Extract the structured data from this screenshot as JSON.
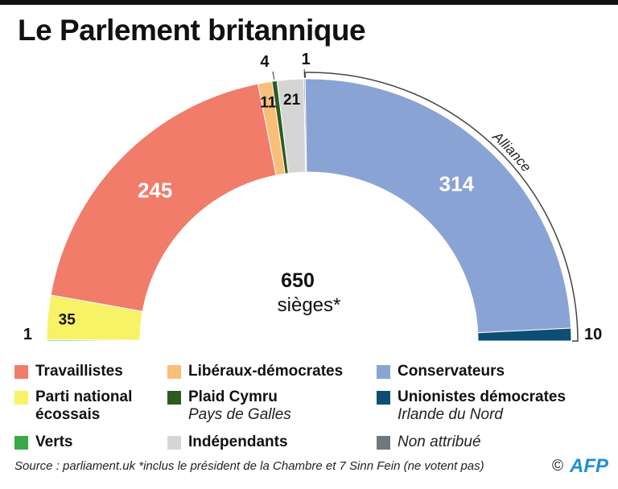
{
  "title": "Le Parlement britannique",
  "chart_data": {
    "type": "pie",
    "subtype": "half-donut",
    "title": "Le Parlement britannique",
    "total": 650,
    "total_label": "650",
    "total_sublabel": "sièges*",
    "series": [
      {
        "name": "Verts",
        "value": 1,
        "color": "#3aaa48",
        "label": "1"
      },
      {
        "name": "Parti national écossais",
        "value": 35,
        "color": "#f8f266",
        "label": "35"
      },
      {
        "name": "Travaillistes",
        "value": 245,
        "color": "#f07c69",
        "label": "245"
      },
      {
        "name": "Libéraux-démocrates",
        "value": 11,
        "color": "#f9be78",
        "label": "11"
      },
      {
        "name": "Plaid Cymru",
        "value": 4,
        "color": "#2e5b1f",
        "label": "4"
      },
      {
        "name": "Indépendants",
        "value": 21,
        "color": "#d5d5d5",
        "label": "21"
      },
      {
        "name": "Non attribué",
        "value": 1,
        "color": "#6f787d",
        "label": "1"
      },
      {
        "name": "Conservateurs",
        "value": 314,
        "color": "#8aa3d5",
        "label": "314"
      },
      {
        "name": "Unionistes démocrates",
        "value": 10,
        "color": "#0d4f74",
        "label": "10"
      }
    ],
    "annotations": [
      {
        "text": "Alliance",
        "spans": [
          "Conservateurs",
          "Unionistes démocrates"
        ]
      }
    ]
  },
  "legend": [
    {
      "label": "Travaillistes",
      "sub": "",
      "color": "#f07c69"
    },
    {
      "label": "Libéraux-démocrates",
      "sub": "",
      "color": "#f9be78"
    },
    {
      "label": "Conservateurs",
      "sub": "",
      "color": "#8aa3d5"
    },
    {
      "label": "Parti national écossais",
      "sub": "",
      "color": "#f8f266"
    },
    {
      "label": "Plaid Cymru",
      "sub": "Pays de Galles",
      "color": "#2e5b1f"
    },
    {
      "label": "Unionistes démocrates",
      "sub": "Irlande du Nord",
      "color": "#0d4f74"
    },
    {
      "label": "Verts",
      "sub": "",
      "color": "#3aaa48"
    },
    {
      "label": "Indépendants",
      "sub": "",
      "color": "#d5d5d5"
    },
    {
      "label": "Non attribué",
      "sub": "",
      "color": "#6f787d"
    }
  ],
  "footer": {
    "text": "Source : parliament.uk  *inclus le président de la Chambre et 7 Sinn Fein (ne votent pas)",
    "copyright": "©",
    "agency": "AFP"
  }
}
